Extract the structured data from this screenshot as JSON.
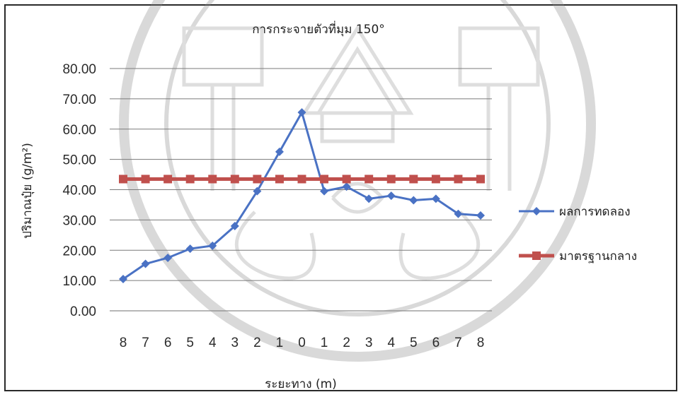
{
  "chart_data": {
    "type": "line",
    "title": "การกระจายตัวที่มุม 150°",
    "xlabel": "ระยะทาง (m)",
    "ylabel": "ปริมาณปุ๋ย (g/m²)",
    "categories": [
      "8",
      "7",
      "6",
      "5",
      "4",
      "3",
      "2",
      "1",
      "0",
      "1",
      "2",
      "3",
      "4",
      "5",
      "6",
      "7",
      "8"
    ],
    "ylim": [
      0,
      80
    ],
    "yticks": [
      "0.00",
      "10.00",
      "20.00",
      "30.00",
      "40.00",
      "50.00",
      "60.00",
      "70.00",
      "80.00"
    ],
    "grid": true,
    "legend_position": "right",
    "series": [
      {
        "name": "ผลการทดลอง",
        "color": "#4a72c4",
        "marker": "diamond",
        "values": [
          10.5,
          15.5,
          17.5,
          20.5,
          21.5,
          28.0,
          39.5,
          52.5,
          65.5,
          39.5,
          41.0,
          37.0,
          38.0,
          36.5,
          37.0,
          32.0,
          31.5
        ]
      },
      {
        "name": "มาตรฐานกลาง",
        "color": "#c0504d",
        "marker": "square",
        "values": [
          43.5,
          43.5,
          43.5,
          43.5,
          43.5,
          43.5,
          43.5,
          43.5,
          43.5,
          43.5,
          43.5,
          43.5,
          43.5,
          43.5,
          43.5,
          43.5,
          43.5
        ]
      }
    ]
  }
}
